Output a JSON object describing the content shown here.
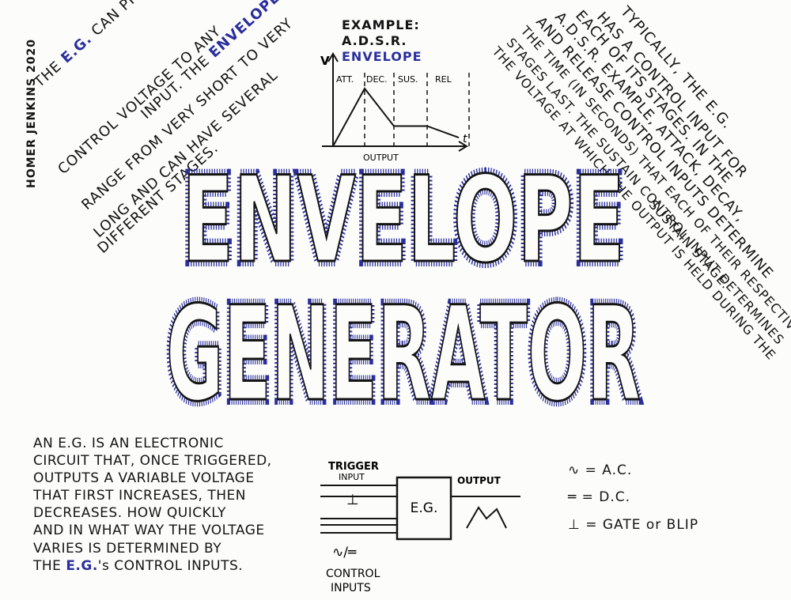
{
  "author": "HOMER JENKINS 2020",
  "title": {
    "line1": "ENVELOPE",
    "line2": "GENERATOR"
  },
  "left_note": {
    "lines": [
      "THE E.G. CAN PROVIDE",
      "CONTROL VOLTAGE TO ANY",
      "RANGE FROM VERY SHORT TO VERY",
      "LONG AND CAN HAVE SEVERAL",
      "DIFFERENT STAGES."
    ],
    "line1_pre": "THE ",
    "line1_highlight": "E.G.",
    "line1_post": " CAN PROVIDE",
    "line2_pre": "CONTROL VOLTAGE TO ANY",
    "line2b_pre": "INPUT. THE ",
    "line2b_highlight": "ENVELOPES"
  },
  "right_note": {
    "lines": [
      "TYPICALLY, THE E.G.",
      "HAS A CONTROL INPUT FOR",
      "EACH OF ITS STAGES. IN THE",
      "A.D.S.R. EXAMPLE, ATTACK, DECAY,",
      "AND RELEASE CONTROL INPUTS DETERMINE",
      "THE TIME (IN SECONDS) THAT EACH OF THEIR RESPECTIVE",
      "STAGES LAST. THE SUSTAIN CONTROL INPUT DETERMINES",
      "THE VOLTAGE AT WHICH THE OUTPUT IS HELD DURING THE",
      "SUSTAIN STAGE."
    ]
  },
  "adsr_example": {
    "heading_lines": [
      "EXAMPLE:",
      "A.D.S.R.",
      "ENVELOPE"
    ],
    "v_label": "V",
    "stages": [
      "ATT.",
      "DEC.",
      "SUS.",
      "REL"
    ],
    "x_label": "OUTPUT",
    "t_label": "t",
    "envelope_shape": {
      "attack_peak": 1.0,
      "sustain_level": 0.35,
      "end_level": 0.15
    }
  },
  "definition": {
    "lines": [
      "AN E.G. IS AN ELECTRONIC",
      "CIRCUIT THAT, ONCE TRIGGERED,",
      "OUTPUTS A VARIABLE VOLTAGE",
      "THAT FIRST INCREASES, THEN",
      "DECREASES. HOW QUICKLY",
      "AND IN WHAT WAY THE VOLTAGE",
      "VARIES IS DETERMINED BY"
    ],
    "last_pre": "THE ",
    "last_highlight": "E.G.",
    "last_post": "'s CONTROL INPUTS."
  },
  "block_diagram": {
    "trigger_label_1": "TRIGGER",
    "trigger_label_2": "INPUT",
    "trigger_symbol": "⊥",
    "box_label": "E.G.",
    "output_label": "OUTPUT",
    "control_symbol": "∿/═",
    "control_label_1": "CONTROL",
    "control_label_2": "INPUTS"
  },
  "legend": {
    "items": [
      {
        "symbol": "∿",
        "text": "= A.C."
      },
      {
        "symbol": "═",
        "text": "= D.C."
      },
      {
        "symbol": "⊥",
        "text": "= GATE or BLIP"
      }
    ]
  },
  "colors": {
    "ink": "#141414",
    "blue": "#2a2f9e",
    "paper": "#fcfcfa"
  }
}
